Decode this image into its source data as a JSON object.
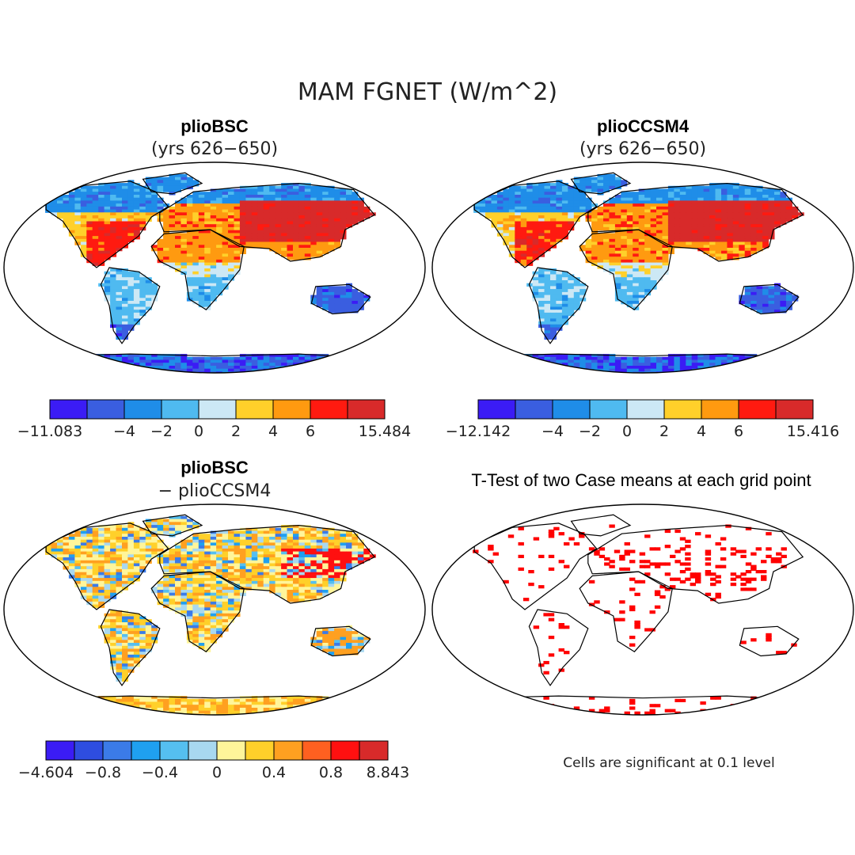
{
  "figure": {
    "title": "MAM FGNET (W/m^2)"
  },
  "panels": [
    {
      "title": "plioBSC",
      "subtitle": "(yrs 626−650)",
      "map_type": "field",
      "colorbar": {
        "colors": [
          "#3b1cf5",
          "#3a5ee0",
          "#1f8de8",
          "#4fbaf0",
          "#cce8f5",
          "#ffd02a",
          "#ff9a10",
          "#ff1a10",
          "#d82a2a"
        ],
        "labels": [
          "−11.083",
          "−4",
          "−2",
          "0",
          "2",
          "4",
          "6",
          "15.484"
        ],
        "label_boundaries": [
          0,
          2,
          3,
          4,
          5,
          6,
          7,
          9
        ]
      }
    },
    {
      "title": "plioCCSM4",
      "subtitle": "(yrs 626−650)",
      "map_type": "field",
      "colorbar": {
        "colors": [
          "#3b1cf5",
          "#3a5ee0",
          "#1f8de8",
          "#4fbaf0",
          "#cce8f5",
          "#ffd02a",
          "#ff9a10",
          "#ff1a10",
          "#d82a2a"
        ],
        "labels": [
          "−12.142",
          "−4",
          "−2",
          "0",
          "2",
          "4",
          "6",
          "15.416"
        ],
        "label_boundaries": [
          0,
          2,
          3,
          4,
          5,
          6,
          7,
          9
        ]
      }
    },
    {
      "title": "plioBSC",
      "subtitle": "− plioCCSM4",
      "map_type": "difference",
      "colorbar": {
        "colors": [
          "#3b1cf5",
          "#2e4de0",
          "#3b7be8",
          "#1fa0f0",
          "#55bff0",
          "#a8d8f0",
          "#fff59a",
          "#ffd02a",
          "#ffa020",
          "#ff6020",
          "#ff1010",
          "#d82a2a"
        ],
        "labels": [
          "−4.604",
          "−0.8",
          "−0.4",
          "0",
          "0.4",
          "0.8",
          "8.843"
        ],
        "label_boundaries": [
          0,
          2,
          4,
          6,
          8,
          10,
          12
        ]
      }
    },
    {
      "title": "T-Test of two Case means at each grid point",
      "subtitle": "",
      "map_type": "significance",
      "note": "Cells are significant at 0.1 level"
    }
  ],
  "colors": {
    "significance": "#ff0000",
    "ocean": "#ffffff",
    "coast": "#000000"
  }
}
